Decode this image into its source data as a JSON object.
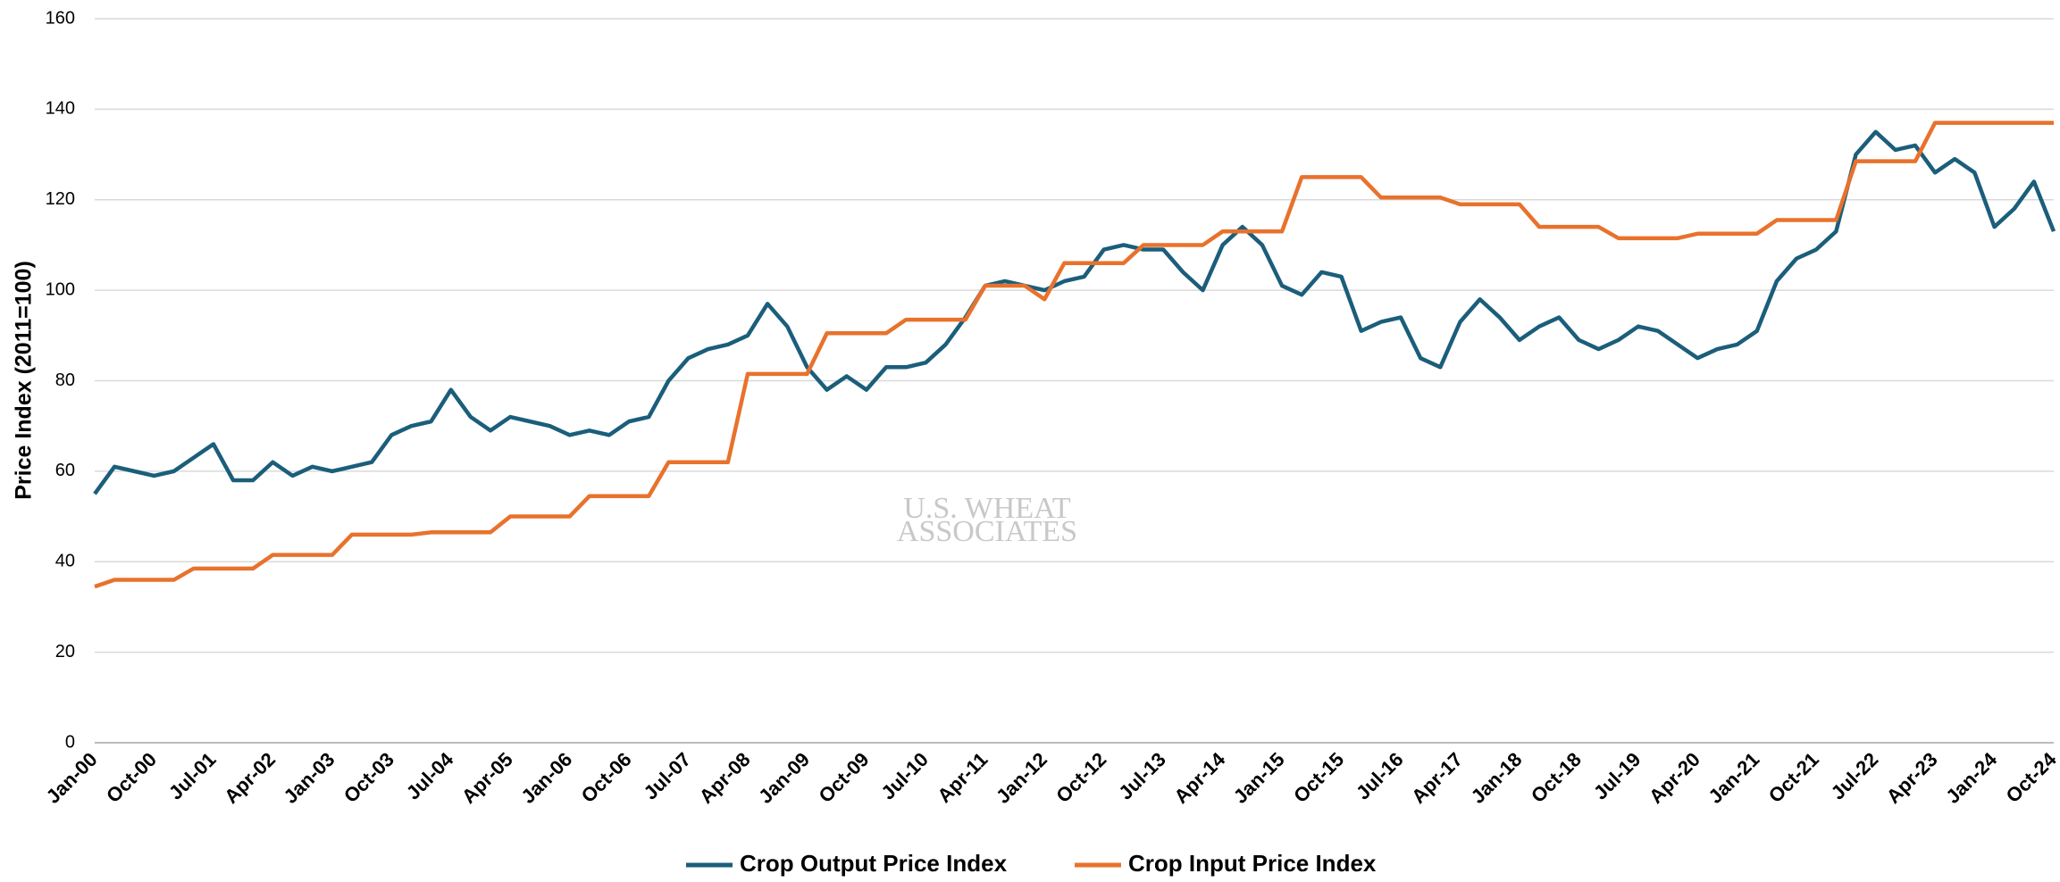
{
  "chart_data": {
    "type": "line",
    "y_axis_label": "Price Index (2011=100)",
    "watermark": [
      "U.S. WHEAT",
      "ASSOCIATES"
    ],
    "categories": [
      "Jan-00",
      null,
      null,
      "Oct-00",
      null,
      null,
      "Jul-01",
      null,
      null,
      "Apr-02",
      null,
      null,
      "Jan-03",
      null,
      null,
      "Oct-03",
      null,
      null,
      "Jul-04",
      null,
      null,
      "Apr-05",
      null,
      null,
      "Jan-06",
      null,
      null,
      "Oct-06",
      null,
      null,
      "Jul-07",
      null,
      null,
      "Apr-08",
      null,
      null,
      "Jan-09",
      null,
      null,
      "Oct-09",
      null,
      null,
      "Jul-10",
      null,
      null,
      "Apr-11",
      null,
      null,
      "Jan-12",
      null,
      null,
      "Oct-12",
      null,
      null,
      "Jul-13",
      null,
      null,
      "Apr-14",
      null,
      null,
      "Jan-15",
      null,
      null,
      "Oct-15",
      null,
      null,
      "Jul-16",
      null,
      null,
      "Apr-17",
      null,
      null,
      "Jan-18",
      null,
      null,
      "Oct-18",
      null,
      null,
      "Jul-19",
      null,
      null,
      "Apr-20",
      null,
      null,
      "Jan-21",
      null,
      null,
      "Oct-21",
      null,
      null,
      "Jul-22",
      null,
      null,
      "Apr-23",
      null,
      null,
      "Jan-24",
      null,
      null,
      "Oct-24"
    ],
    "series": [
      {
        "name": "Crop Output Price Index",
        "color": "#1b5e7b",
        "values": [
          55,
          61,
          60,
          59,
          60,
          63,
          66,
          58,
          58,
          62,
          59,
          61,
          60,
          61,
          62,
          68,
          70,
          71,
          78,
          72,
          69,
          72,
          71,
          70,
          68,
          69,
          68,
          71,
          72,
          80,
          85,
          87,
          88,
          90,
          97,
          92,
          83,
          78,
          81,
          78,
          83,
          83,
          84,
          88,
          94,
          101,
          102,
          101,
          100,
          102,
          103,
          109,
          110,
          109,
          109,
          104,
          100,
          110,
          114,
          110,
          101,
          99,
          104,
          103,
          91,
          93,
          94,
          85,
          83,
          93,
          98,
          94,
          89,
          92,
          94,
          89,
          87,
          89,
          92,
          91,
          88,
          85,
          87,
          88,
          91,
          102,
          107,
          109,
          113,
          130,
          135,
          131,
          132,
          126,
          129,
          126,
          114,
          118,
          124,
          113
        ]
      },
      {
        "name": "Crop Input Price Index",
        "color": "#e8722c",
        "values": [
          34.5,
          36,
          36,
          36,
          36,
          38.5,
          38.5,
          38.5,
          38.5,
          41.5,
          41.5,
          41.5,
          41.5,
          46,
          46,
          46,
          46,
          46.5,
          46.5,
          46.5,
          46.5,
          50,
          50,
          50,
          50,
          54.5,
          54.5,
          54.5,
          54.5,
          62,
          62,
          62,
          62,
          81.5,
          81.5,
          81.5,
          81.5,
          90.5,
          90.5,
          90.5,
          90.5,
          93.5,
          93.5,
          93.5,
          93.5,
          101,
          101,
          101,
          98,
          106,
          106,
          106,
          106,
          110,
          110,
          110,
          110,
          113,
          113,
          113,
          113,
          125,
          125,
          125,
          125,
          120.5,
          120.5,
          120.5,
          120.5,
          119,
          119,
          119,
          119,
          114,
          114,
          114,
          114,
          111.5,
          111.5,
          111.5,
          111.5,
          112.5,
          112.5,
          112.5,
          112.5,
          115.5,
          115.5,
          115.5,
          115.5,
          128.5,
          128.5,
          128.5,
          128.5,
          137,
          137,
          137,
          137,
          137,
          137,
          137
        ]
      }
    ],
    "ylim": [
      0,
      160
    ],
    "yticks": [
      0,
      20,
      40,
      60,
      80,
      100,
      120,
      140,
      160
    ],
    "grid": true,
    "legend": "bottom"
  }
}
